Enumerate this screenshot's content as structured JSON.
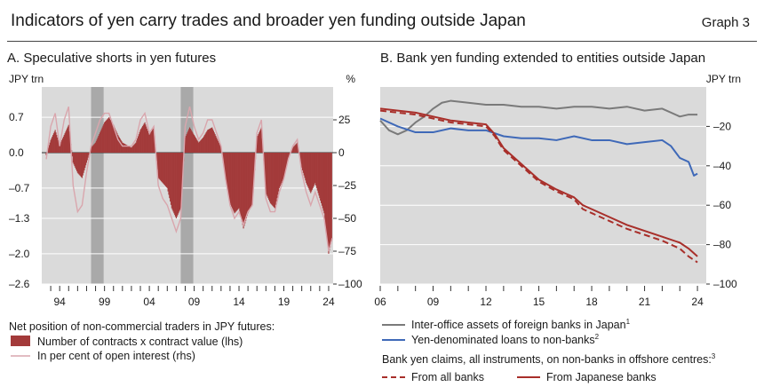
{
  "header": {
    "title": "Indicators of yen carry trades and broader yen funding outside Japan",
    "graph_number": "Graph 3"
  },
  "colors": {
    "plot_bg": "#dadada",
    "shade": "#a9a9a9",
    "futures_bar": "#a33a3a",
    "open_interest_line": "#d9a6ad",
    "interoffice": "#7a7a7a",
    "yen_loans": "#3f69b8",
    "claims": "#a82f2a"
  },
  "chart_data": [
    {
      "panel": "A",
      "type": "bar",
      "title": "A. Speculative shorts in yen futures",
      "ylabel_left": "JPY trn",
      "ylabel_right": "%",
      "xlim": [
        1992,
        2024.5
      ],
      "ylim_left": [
        -2.6,
        1.3
      ],
      "ylim_right": [
        -100,
        50
      ],
      "left_ticks": [
        0.7,
        0.0,
        -0.7,
        -1.3,
        -2.0,
        -2.6
      ],
      "left_tick_labels": [
        "0.7",
        "0.0",
        "–0.7",
        "–1.3",
        "–2.0",
        "–2.6"
      ],
      "right_ticks": [
        25,
        0,
        -25,
        -50,
        -75,
        -100
      ],
      "right_tick_labels": [
        "25",
        "0",
        "–25",
        "–50",
        "–75",
        "–100"
      ],
      "x_tick_labels": [
        {
          "x": 1994,
          "label": "94"
        },
        {
          "x": 1999,
          "label": "99"
        },
        {
          "x": 2004,
          "label": "04"
        },
        {
          "x": 2009,
          "label": "09"
        },
        {
          "x": 2014,
          "label": "14"
        },
        {
          "x": 2019,
          "label": "19"
        },
        {
          "x": 2024,
          "label": "24"
        }
      ],
      "shaded_periods": [
        [
          1997.5,
          1998.9
        ],
        [
          2007.5,
          2008.9
        ]
      ],
      "legend_heading": "Net position of non-commercial traders in JPY futures:",
      "series": [
        {
          "name": "Number of contracts x contract value (lhs)",
          "axis": "left",
          "points": [
            [
              1992.5,
              -0.05
            ],
            [
              1993.0,
              0.25
            ],
            [
              1993.5,
              0.45
            ],
            [
              1994.0,
              0.15
            ],
            [
              1994.5,
              0.35
            ],
            [
              1995.0,
              0.55
            ],
            [
              1995.5,
              -0.2
            ],
            [
              1996.0,
              -0.4
            ],
            [
              1996.5,
              -0.5
            ],
            [
              1997.0,
              -0.2
            ],
            [
              1997.5,
              0.1
            ],
            [
              1998.0,
              0.2
            ],
            [
              1998.5,
              0.4
            ],
            [
              1999.0,
              0.6
            ],
            [
              1999.5,
              0.7
            ],
            [
              2000.0,
              0.55
            ],
            [
              2000.5,
              0.35
            ],
            [
              2001.0,
              0.2
            ],
            [
              2001.5,
              0.15
            ],
            [
              2002.0,
              0.1
            ],
            [
              2002.5,
              0.2
            ],
            [
              2003.0,
              0.45
            ],
            [
              2003.5,
              0.6
            ],
            [
              2004.0,
              0.35
            ],
            [
              2004.5,
              0.5
            ],
            [
              2005.0,
              -0.5
            ],
            [
              2005.5,
              -0.6
            ],
            [
              2006.0,
              -0.7
            ],
            [
              2006.5,
              -1.1
            ],
            [
              2007.0,
              -1.3
            ],
            [
              2007.5,
              -1.1
            ],
            [
              2008.0,
              0.3
            ],
            [
              2008.5,
              0.5
            ],
            [
              2009.0,
              0.35
            ],
            [
              2009.5,
              0.2
            ],
            [
              2010.0,
              0.3
            ],
            [
              2010.5,
              0.45
            ],
            [
              2011.0,
              0.5
            ],
            [
              2011.5,
              0.3
            ],
            [
              2012.0,
              0.1
            ],
            [
              2012.5,
              -0.5
            ],
            [
              2013.0,
              -1.0
            ],
            [
              2013.5,
              -1.2
            ],
            [
              2014.0,
              -1.1
            ],
            [
              2014.5,
              -1.5
            ],
            [
              2015.0,
              -1.2
            ],
            [
              2015.5,
              -1.0
            ],
            [
              2016.0,
              0.3
            ],
            [
              2016.5,
              0.5
            ],
            [
              2017.0,
              -0.8
            ],
            [
              2017.5,
              -1.0
            ],
            [
              2018.0,
              -1.1
            ],
            [
              2018.5,
              -0.7
            ],
            [
              2019.0,
              -0.5
            ],
            [
              2019.5,
              -0.1
            ],
            [
              2020.0,
              0.1
            ],
            [
              2020.5,
              0.2
            ],
            [
              2021.0,
              -0.3
            ],
            [
              2021.5,
              -0.6
            ],
            [
              2022.0,
              -0.8
            ],
            [
              2022.5,
              -0.6
            ],
            [
              2023.0,
              -0.9
            ],
            [
              2023.5,
              -1.2
            ],
            [
              2024.0,
              -2.0
            ],
            [
              2024.4,
              -1.7
            ]
          ]
        },
        {
          "name": "In per cent of open interest (rhs)",
          "axis": "right",
          "points": [
            [
              1992.5,
              -5
            ],
            [
              1993.0,
              20
            ],
            [
              1993.5,
              30
            ],
            [
              1994.0,
              5
            ],
            [
              1994.5,
              25
            ],
            [
              1995.0,
              35
            ],
            [
              1995.5,
              -25
            ],
            [
              1996.0,
              -45
            ],
            [
              1996.5,
              -40
            ],
            [
              1997.0,
              -15
            ],
            [
              1997.5,
              5
            ],
            [
              1998.0,
              15
            ],
            [
              1998.5,
              25
            ],
            [
              1999.0,
              30
            ],
            [
              1999.5,
              30
            ],
            [
              2000.0,
              20
            ],
            [
              2000.5,
              10
            ],
            [
              2001.0,
              5
            ],
            [
              2001.5,
              5
            ],
            [
              2002.0,
              5
            ],
            [
              2002.5,
              10
            ],
            [
              2003.0,
              25
            ],
            [
              2003.5,
              30
            ],
            [
              2004.0,
              15
            ],
            [
              2004.5,
              20
            ],
            [
              2005.0,
              -25
            ],
            [
              2005.5,
              -35
            ],
            [
              2006.0,
              -40
            ],
            [
              2006.5,
              -50
            ],
            [
              2007.0,
              -60
            ],
            [
              2007.5,
              -50
            ],
            [
              2008.0,
              20
            ],
            [
              2008.5,
              35
            ],
            [
              2009.0,
              20
            ],
            [
              2009.5,
              10
            ],
            [
              2010.0,
              15
            ],
            [
              2010.5,
              25
            ],
            [
              2011.0,
              25
            ],
            [
              2011.5,
              15
            ],
            [
              2012.0,
              5
            ],
            [
              2012.5,
              -20
            ],
            [
              2013.0,
              -40
            ],
            [
              2013.5,
              -50
            ],
            [
              2014.0,
              -45
            ],
            [
              2014.5,
              -55
            ],
            [
              2015.0,
              -45
            ],
            [
              2015.5,
              -40
            ],
            [
              2016.0,
              15
            ],
            [
              2016.5,
              25
            ],
            [
              2017.0,
              -35
            ],
            [
              2017.5,
              -45
            ],
            [
              2018.0,
              -45
            ],
            [
              2018.5,
              -30
            ],
            [
              2019.0,
              -20
            ],
            [
              2019.5,
              -5
            ],
            [
              2020.0,
              5
            ],
            [
              2020.5,
              10
            ],
            [
              2021.0,
              -15
            ],
            [
              2021.5,
              -30
            ],
            [
              2022.0,
              -40
            ],
            [
              2022.5,
              -30
            ],
            [
              2023.0,
              -40
            ],
            [
              2023.5,
              -50
            ],
            [
              2024.0,
              -75
            ],
            [
              2024.4,
              -65
            ]
          ]
        }
      ]
    },
    {
      "panel": "B",
      "type": "line",
      "title": "B. Bank yen funding extended to entities outside Japan",
      "ylabel_right": "JPY trn",
      "xlim": [
        2006,
        2024.5
      ],
      "ylim": [
        -100,
        0
      ],
      "y_ticks": [
        -20,
        -40,
        -60,
        -80,
        -100
      ],
      "y_tick_labels": [
        "–20",
        "–40",
        "–60",
        "–80",
        "–100"
      ],
      "x_tick_labels": [
        {
          "x": 2006,
          "label": "06"
        },
        {
          "x": 2009,
          "label": "09"
        },
        {
          "x": 2012,
          "label": "12"
        },
        {
          "x": 2015,
          "label": "15"
        },
        {
          "x": 2018,
          "label": "18"
        },
        {
          "x": 2021,
          "label": "21"
        },
        {
          "x": 2024,
          "label": "24"
        }
      ],
      "legend_heading": "Bank yen claims, all instruments, on non-banks in offshore centres:",
      "legend_heading_superscript": "3",
      "series": [
        {
          "name": "Inter-office assets of foreign banks in Japan",
          "superscript": "1",
          "style": "solid",
          "points": [
            [
              2006.0,
              -17
            ],
            [
              2006.5,
              -22
            ],
            [
              2007.0,
              -24
            ],
            [
              2007.5,
              -22
            ],
            [
              2008.0,
              -18
            ],
            [
              2008.5,
              -15
            ],
            [
              2009.0,
              -11
            ],
            [
              2009.5,
              -8
            ],
            [
              2010.0,
              -7
            ],
            [
              2011.0,
              -8
            ],
            [
              2012.0,
              -9
            ],
            [
              2013.0,
              -9
            ],
            [
              2014.0,
              -10
            ],
            [
              2015.0,
              -10
            ],
            [
              2016.0,
              -11
            ],
            [
              2017.0,
              -10
            ],
            [
              2018.0,
              -10
            ],
            [
              2019.0,
              -11
            ],
            [
              2020.0,
              -10
            ],
            [
              2021.0,
              -12
            ],
            [
              2022.0,
              -11
            ],
            [
              2023.0,
              -15
            ],
            [
              2023.5,
              -14
            ],
            [
              2024.0,
              -14
            ]
          ]
        },
        {
          "name": "Yen-denominated loans to non-banks",
          "superscript": "2",
          "style": "solid",
          "points": [
            [
              2006.0,
              -16
            ],
            [
              2007.0,
              -20
            ],
            [
              2008.0,
              -23
            ],
            [
              2009.0,
              -23
            ],
            [
              2010.0,
              -21
            ],
            [
              2011.0,
              -22
            ],
            [
              2012.0,
              -22
            ],
            [
              2013.0,
              -25
            ],
            [
              2014.0,
              -26
            ],
            [
              2015.0,
              -26
            ],
            [
              2016.0,
              -27
            ],
            [
              2017.0,
              -25
            ],
            [
              2018.0,
              -27
            ],
            [
              2019.0,
              -27
            ],
            [
              2020.0,
              -29
            ],
            [
              2021.0,
              -28
            ],
            [
              2022.0,
              -27
            ],
            [
              2022.5,
              -30
            ],
            [
              2023.0,
              -36
            ],
            [
              2023.5,
              -38
            ],
            [
              2023.8,
              -45
            ],
            [
              2024.0,
              -44
            ]
          ]
        },
        {
          "name": "From all banks",
          "style": "dashed",
          "points": [
            [
              2006.0,
              -12
            ],
            [
              2007.0,
              -13
            ],
            [
              2008.0,
              -14
            ],
            [
              2009.0,
              -16
            ],
            [
              2010.0,
              -18
            ],
            [
              2011.0,
              -19
            ],
            [
              2012.0,
              -20
            ],
            [
              2012.5,
              -25
            ],
            [
              2013.0,
              -32
            ],
            [
              2014.0,
              -40
            ],
            [
              2015.0,
              -48
            ],
            [
              2016.0,
              -53
            ],
            [
              2017.0,
              -57
            ],
            [
              2017.5,
              -62
            ],
            [
              2018.0,
              -64
            ],
            [
              2019.0,
              -68
            ],
            [
              2020.0,
              -72
            ],
            [
              2021.0,
              -75
            ],
            [
              2022.0,
              -78
            ],
            [
              2023.0,
              -82
            ],
            [
              2023.5,
              -86
            ],
            [
              2024.0,
              -89
            ]
          ]
        },
        {
          "name": "From Japanese banks",
          "style": "solid",
          "points": [
            [
              2006.0,
              -11
            ],
            [
              2007.0,
              -12
            ],
            [
              2008.0,
              -13
            ],
            [
              2009.0,
              -15
            ],
            [
              2010.0,
              -17
            ],
            [
              2011.0,
              -18
            ],
            [
              2012.0,
              -19
            ],
            [
              2012.5,
              -24
            ],
            [
              2013.0,
              -31
            ],
            [
              2014.0,
              -39
            ],
            [
              2015.0,
              -47
            ],
            [
              2016.0,
              -52
            ],
            [
              2017.0,
              -56
            ],
            [
              2017.5,
              -60
            ],
            [
              2018.0,
              -62
            ],
            [
              2019.0,
              -66
            ],
            [
              2020.0,
              -70
            ],
            [
              2021.0,
              -73
            ],
            [
              2022.0,
              -76
            ],
            [
              2023.0,
              -79
            ],
            [
              2023.5,
              -82
            ],
            [
              2024.0,
              -86
            ]
          ]
        }
      ]
    }
  ]
}
